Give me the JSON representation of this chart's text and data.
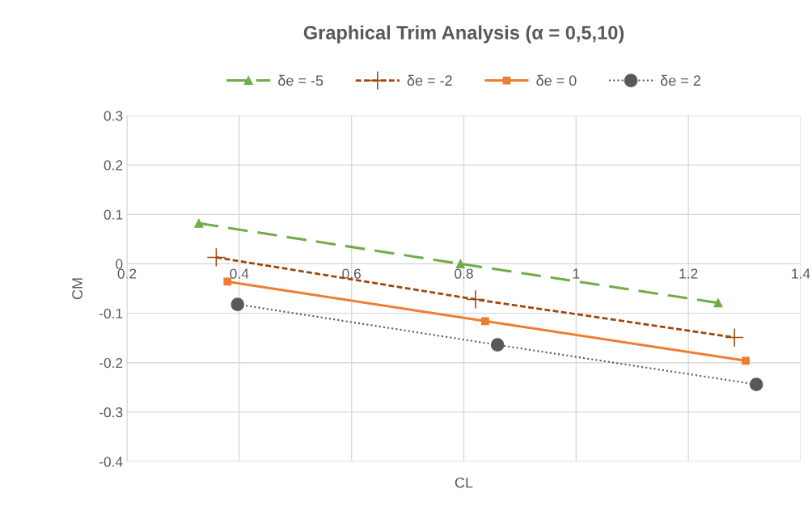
{
  "chart_data": {
    "type": "line",
    "title": "Graphical Trim Analysis (α = 0,5,10)",
    "xlabel": "CL",
    "ylabel": "CM",
    "xlim": [
      0.2,
      1.4
    ],
    "xticks": [
      0.2,
      0.4,
      0.6,
      0.8,
      1,
      1.2,
      1.4
    ],
    "ylim": [
      -0.4,
      0.3
    ],
    "yticks": [
      -0.4,
      -0.3,
      -0.2,
      -0.1,
      0,
      0.1,
      0.2,
      0.3
    ],
    "grid": true,
    "legend": "top",
    "series": [
      {
        "name": "δe = -5",
        "color": "#70ad47",
        "marker": "triangle",
        "line_style": "dashed",
        "x": [
          0.328,
          0.794,
          1.253
        ],
        "values": [
          0.082,
          0.0,
          -0.079
        ]
      },
      {
        "name": "δe = -2",
        "color": "#9e480e",
        "marker": "cross",
        "line_style": "dashed",
        "x": [
          0.359,
          0.821,
          1.282
        ],
        "values": [
          0.013,
          -0.072,
          -0.149
        ]
      },
      {
        "name": "δe = 0",
        "color": "#ed7d31",
        "marker": "square",
        "line_style": "solid",
        "x": [
          0.379,
          0.838,
          1.302
        ],
        "values": [
          -0.036,
          -0.116,
          -0.196
        ]
      },
      {
        "name": "δe = 2",
        "color": "#595959",
        "marker": "circle",
        "line_style": "dotted",
        "x": [
          0.397,
          0.86,
          1.321
        ],
        "values": [
          -0.082,
          -0.164,
          -0.244
        ]
      }
    ]
  }
}
